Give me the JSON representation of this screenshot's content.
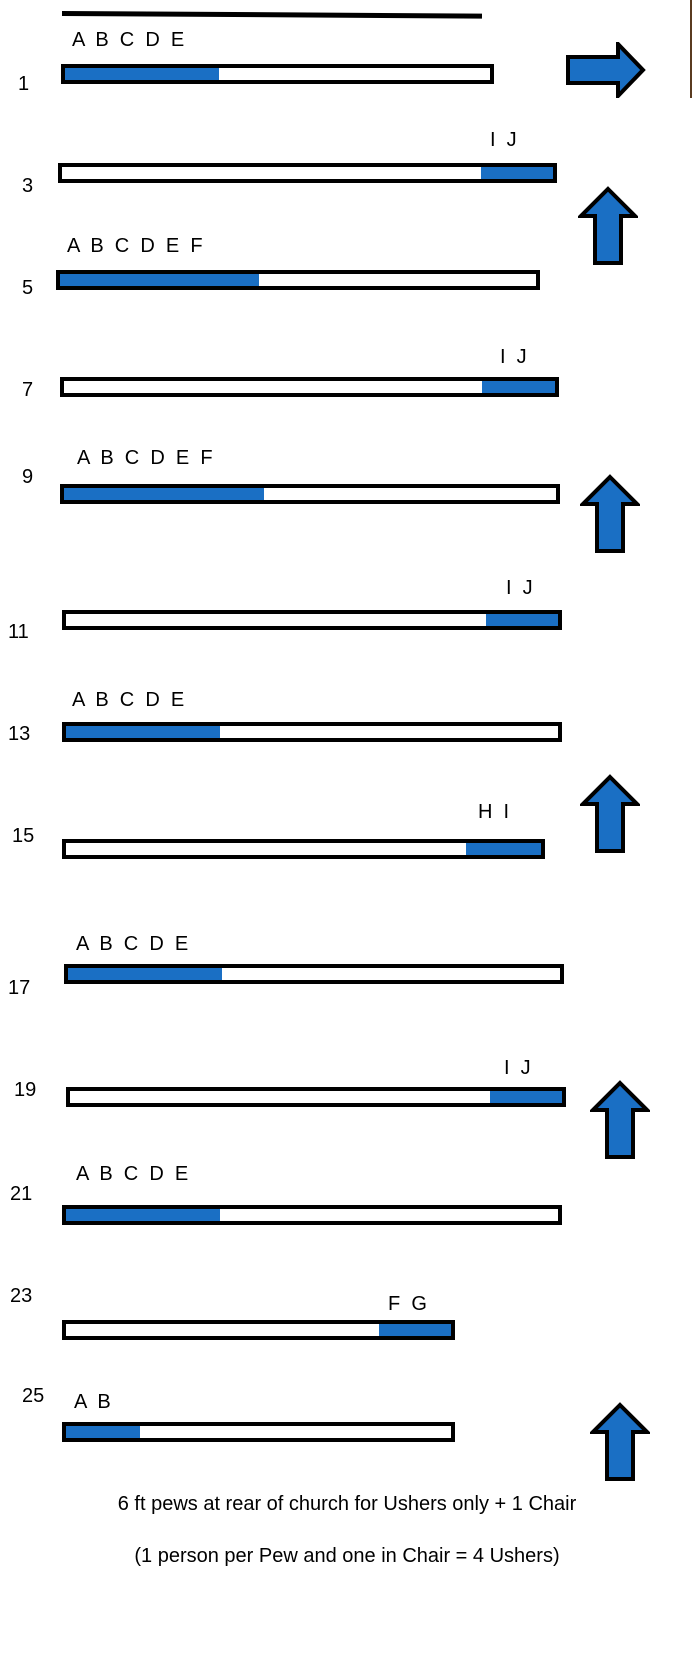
{
  "rows": [
    {
      "number": "1",
      "seats": "A  B  C  D  E"
    },
    {
      "number": "3",
      "seats": "I  J"
    },
    {
      "number": "5",
      "seats": "A  B  C  D  E  F"
    },
    {
      "number": "7",
      "seats": "I  J"
    },
    {
      "number": "9",
      "seats": "A  B  C  D  E  F"
    },
    {
      "number": "11",
      "seats": "I  J"
    },
    {
      "number": "13",
      "seats": "A  B  C  D  E"
    },
    {
      "number": "15",
      "seats": "H  I"
    },
    {
      "number": "17",
      "seats": "A  B  C  D  E"
    },
    {
      "number": "19",
      "seats": "I  J"
    },
    {
      "number": "21",
      "seats": "A  B  C  D  E"
    },
    {
      "number": "23",
      "seats": "F  G"
    },
    {
      "number": "25",
      "seats": "A  B"
    }
  ],
  "arrows": [
    {
      "direction": "right",
      "icon": "right-arrow-icon"
    },
    {
      "direction": "up",
      "icon": "up-arrow-icon"
    },
    {
      "direction": "up",
      "icon": "up-arrow-icon"
    },
    {
      "direction": "up",
      "icon": "up-arrow-icon"
    },
    {
      "direction": "up",
      "icon": "up-arrow-icon"
    },
    {
      "direction": "up",
      "icon": "up-arrow-icon"
    }
  ],
  "footer": {
    "line1": "6 ft pews at rear of church for Ushers only + 1 Chair",
    "line2": "(1 person per Pew and one in Chair = 4 Ushers)"
  },
  "colors": {
    "occupied": "#1a6fc4",
    "outline": "#000000",
    "arrow_fill": "#1a6fc4"
  }
}
